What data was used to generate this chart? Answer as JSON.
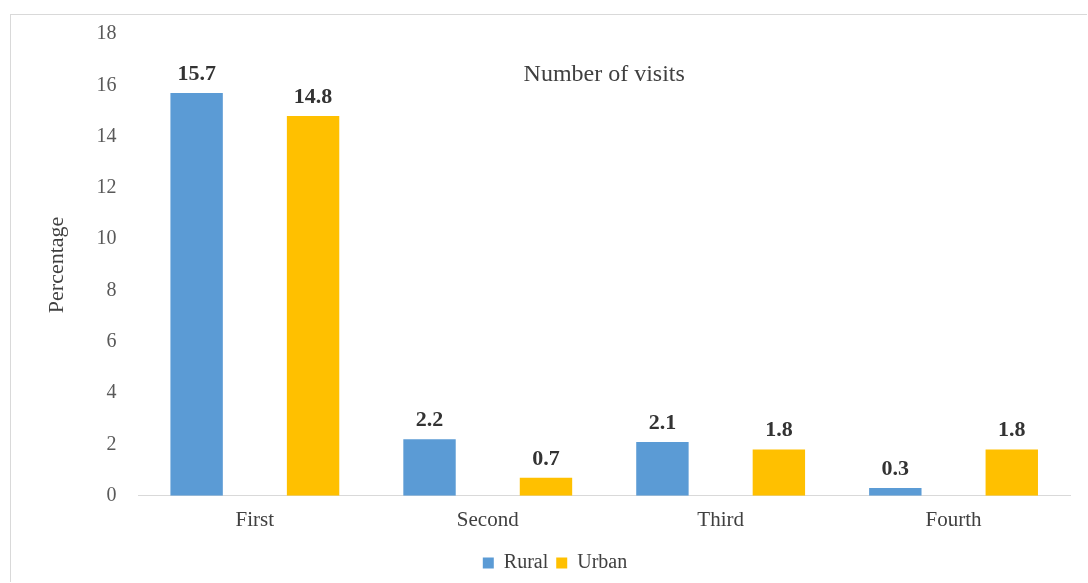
{
  "chart_data": {
    "type": "bar",
    "title": "Number of visits",
    "ylabel": "Percentage",
    "categories": [
      "First",
      "Second",
      "Third",
      "Fourth"
    ],
    "series": [
      {
        "name": "Rural",
        "color": "#5b9bd5",
        "values": [
          15.7,
          2.2,
          2.1,
          0.3
        ]
      },
      {
        "name": "Urban",
        "color": "#ffc000",
        "values": [
          14.8,
          0.7,
          1.8,
          1.8
        ]
      }
    ],
    "ylim": [
      0,
      18
    ],
    "yticks": [
      0,
      2,
      4,
      6,
      8,
      10,
      12,
      14,
      16,
      18
    ],
    "grid": false,
    "legend": "bottom",
    "data_labels": true
  }
}
